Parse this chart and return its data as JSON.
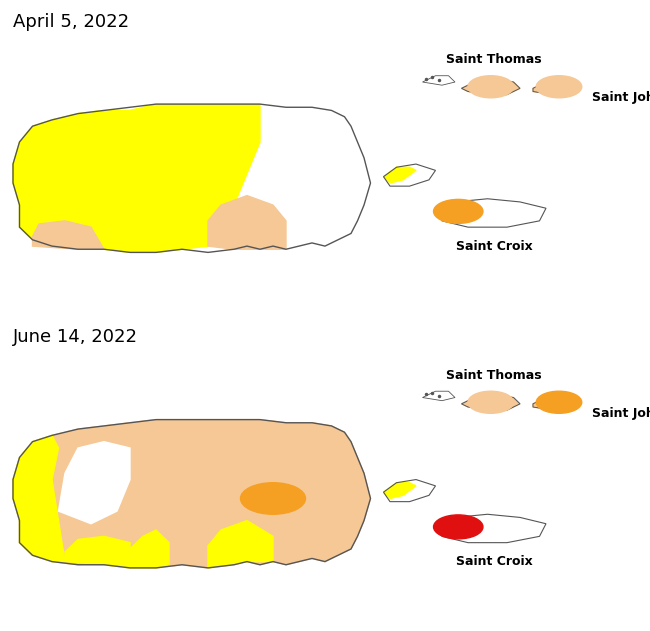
{
  "title_top": "April 5, 2022",
  "title_bottom": "June 14, 2022",
  "color_yellow": "#FFFF00",
  "color_tan": "#F5C896",
  "color_orange": "#F5A023",
  "color_red": "#E01010",
  "color_outline": "#555555",
  "color_bg": "#FFFFFF",
  "label_saint_thomas": "Saint Thomas",
  "label_saint_john": "Saint John",
  "label_saint_croix": "Saint Croix",
  "font_title": 13,
  "font_label": 9
}
